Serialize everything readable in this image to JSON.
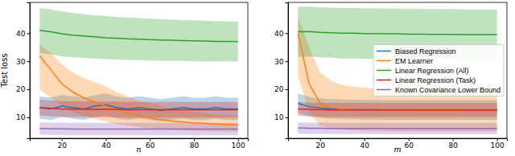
{
  "chart_data": [
    {
      "type": "line",
      "x_label": "n",
      "y_label": "Test loss",
      "x": [
        10,
        15,
        20,
        25,
        30,
        35,
        40,
        45,
        50,
        55,
        60,
        65,
        70,
        75,
        80,
        85,
        90,
        95,
        100
      ],
      "xlim": [
        5.5,
        104.5
      ],
      "xticks": [
        20,
        40,
        60,
        80,
        100
      ],
      "ylim": [
        2.5,
        51
      ],
      "yticks": [
        10,
        20,
        30,
        40
      ],
      "series": [
        {
          "color": "#1f77b4",
          "values": [
            13.5,
            13,
            14,
            13.5,
            13,
            14,
            14.5,
            13.5,
            13,
            13.5,
            13,
            12.5,
            13,
            13.5,
            13,
            13,
            13.5,
            13,
            13
          ],
          "upper": [
            17.5,
            17,
            18,
            17.5,
            17,
            18,
            18.5,
            17.5,
            17,
            17.5,
            17,
            16.5,
            17,
            17.5,
            17,
            17,
            17.5,
            17,
            17
          ],
          "lower": [
            9.5,
            9,
            10,
            9.5,
            9,
            10,
            10.5,
            9.5,
            9,
            9.5,
            9,
            8.5,
            9,
            9.5,
            9,
            9,
            9.5,
            9,
            9
          ]
        },
        {
          "color": "#ff7f0e",
          "values": [
            32,
            27,
            22,
            19,
            17,
            15.5,
            14,
            12.5,
            11.5,
            10.5,
            9.8,
            9.2,
            8.7,
            8.3,
            8,
            7.8,
            7.6,
            7.4,
            7.2
          ],
          "upper": [
            36,
            33,
            29,
            26,
            24,
            22.5,
            21,
            19,
            17.5,
            16,
            15,
            14,
            13,
            12.5,
            12,
            11.5,
            11,
            10.8,
            10.5
          ],
          "lower": [
            20,
            17,
            14,
            12,
            10.5,
            9.5,
            8.5,
            7.5,
            7,
            6.5,
            6,
            5.8,
            5.5,
            5.3,
            5.2,
            5.1,
            5,
            4.9,
            4.8
          ]
        },
        {
          "color": "#2ca02c",
          "values": [
            41,
            40.5,
            39.8,
            39.3,
            39,
            38.7,
            38.4,
            38.2,
            38,
            37.9,
            37.7,
            37.6,
            37.5,
            37.4,
            37.3,
            37.2,
            37.1,
            37.1,
            37
          ],
          "upper": [
            49,
            48.5,
            47.8,
            47.2,
            46.8,
            46.4,
            46.1,
            45.8,
            45.6,
            45.4,
            45.2,
            45,
            44.9,
            44.7,
            44.6,
            44.5,
            44.3,
            44.2,
            44.1
          ],
          "lower": [
            33,
            32.5,
            31.8,
            31.4,
            31.2,
            31,
            30.7,
            30.6,
            30.4,
            30.4,
            30.2,
            30.2,
            30.1,
            30.1,
            30,
            29.9,
            29.9,
            30,
            29.9
          ]
        },
        {
          "color": "#d62728",
          "values": [
            13.5,
            13.2,
            13,
            12.9,
            12.9,
            12.8,
            12.8,
            12.8,
            12.7,
            12.7,
            12.7,
            12.7,
            12.7,
            12.7,
            12.7,
            12.7,
            12.7,
            12.7,
            12.7
          ],
          "upper": [
            16.3,
            16,
            15.8,
            15.7,
            15.7,
            15.6,
            15.6,
            15.6,
            15.5,
            15.5,
            15.5,
            15.5,
            15.5,
            15.5,
            15.5,
            15.5,
            15.5,
            15.5,
            15.5
          ],
          "lower": [
            10.7,
            10.4,
            10.2,
            10.1,
            10.1,
            10,
            10,
            10,
            9.9,
            9.9,
            9.9,
            9.9,
            9.9,
            9.9,
            9.9,
            9.9,
            9.9,
            9.9,
            9.9
          ]
        },
        {
          "color": "#9467bd",
          "values": [
            6,
            5.9,
            5.9,
            5.8,
            5.8,
            5.8,
            5.8,
            5.8,
            5.8,
            5.8,
            5.8,
            5.8,
            5.8,
            5.8,
            5.8,
            5.8,
            5.8,
            5.8,
            5.8
          ],
          "upper": [
            8.2,
            8.1,
            8.1,
            8,
            8,
            8,
            8,
            8,
            8,
            8,
            8,
            8,
            8,
            8,
            8,
            8,
            8,
            8,
            8
          ],
          "lower": [
            3.8,
            3.7,
            3.7,
            3.6,
            3.6,
            3.6,
            3.6,
            3.6,
            3.6,
            3.6,
            3.6,
            3.6,
            3.6,
            3.6,
            3.6,
            3.6,
            3.6,
            3.6,
            3.6
          ]
        }
      ]
    },
    {
      "type": "line",
      "x_label": "m",
      "legend": "center right",
      "x": [
        10,
        15,
        20,
        25,
        30,
        35,
        40,
        45,
        50,
        55,
        60,
        65,
        70,
        75,
        80,
        85,
        90,
        95,
        100
      ],
      "xlim": [
        5.5,
        104.5
      ],
      "xticks": [
        20,
        40,
        60,
        80,
        100
      ],
      "ylim": [
        2.5,
        51
      ],
      "yticks": [
        10,
        20,
        30,
        40
      ],
      "series": [
        {
          "name": "Biased Regression",
          "color": "#1f77b4",
          "values": [
            15,
            13.8,
            13.3,
            13,
            12.9,
            12.8,
            12.7,
            12.7,
            12.6,
            12.6,
            12.6,
            12.6,
            12.6,
            12.6,
            12.6,
            12.6,
            12.6,
            12.6,
            12.6
          ],
          "upper": [
            18.5,
            17.3,
            16.8,
            16.5,
            16.4,
            16.3,
            16.2,
            16.2,
            16.1,
            16.1,
            16.1,
            16.1,
            16.1,
            16.1,
            16.1,
            16.1,
            16.1,
            16.1,
            16.1
          ],
          "lower": [
            11.5,
            10.3,
            9.8,
            9.5,
            9.4,
            9.3,
            9.2,
            9.2,
            9.1,
            9.1,
            9.1,
            9.1,
            9.1,
            9.1,
            9.1,
            9.1,
            9.1,
            9.1,
            9.1
          ]
        },
        {
          "name": "EM Learner",
          "color": "#ff7f0e",
          "values": [
            40,
            22,
            15,
            13.5,
            13,
            12.8,
            12.6,
            12.5,
            12.5,
            12.4,
            12.4,
            12.3,
            12.3,
            12.3,
            12.3,
            12.2,
            12.2,
            12.2,
            12.2
          ],
          "upper": [
            46,
            35,
            26,
            23,
            21.5,
            21,
            20.5,
            20.3,
            20.2,
            20,
            20,
            20,
            20,
            20,
            20,
            20,
            20,
            20,
            20
          ],
          "lower": [
            25,
            12,
            7,
            6,
            5.5,
            5.3,
            5.2,
            5.1,
            5,
            5,
            5,
            5,
            5,
            5,
            5,
            5,
            5,
            5,
            5
          ]
        },
        {
          "name": "Linear Regression (All)",
          "color": "#2ca02c",
          "values": [
            40.5,
            40.6,
            40.3,
            40.2,
            40,
            40,
            39.9,
            39.9,
            39.8,
            39.8,
            39.7,
            39.7,
            39.6,
            39.6,
            39.6,
            39.5,
            39.5,
            39.5,
            39.5
          ],
          "upper": [
            49.5,
            49.5,
            49.2,
            49.1,
            49,
            49,
            48.9,
            48.9,
            48.8,
            48.8,
            48.7,
            48.7,
            48.6,
            48.6,
            48.6,
            48.5,
            48.5,
            48.5,
            48.5
          ],
          "lower": [
            31.5,
            31.7,
            31.4,
            31.3,
            31,
            31,
            30.9,
            30.9,
            30.8,
            30.8,
            30.7,
            30.7,
            30.6,
            30.6,
            30.6,
            30.5,
            30.5,
            30.5,
            30.5
          ]
        },
        {
          "name": "Linear Regression (Task)",
          "color": "#d62728",
          "values": [
            13,
            12.8,
            12.7,
            12.6,
            12.6,
            12.6,
            12.6,
            12.6,
            12.6,
            12.6,
            12.6,
            12.6,
            12.6,
            12.6,
            12.6,
            12.6,
            12.6,
            12.6,
            12.6
          ],
          "upper": [
            15.5,
            15.3,
            15.2,
            15.1,
            15.1,
            15.1,
            15.1,
            15.1,
            15.1,
            15.1,
            15.1,
            15.1,
            15.1,
            15.1,
            15.1,
            15.1,
            15.1,
            15.1,
            15.1
          ],
          "lower": [
            10.5,
            10.3,
            10.2,
            10.1,
            10.1,
            10.1,
            10.1,
            10.1,
            10.1,
            10.1,
            10.1,
            10.1,
            10.1,
            10.1,
            10.1,
            10.1,
            10.1,
            10.1,
            10.1
          ]
        },
        {
          "name": "Known Covariance Lower Bound",
          "color": "#9467bd",
          "values": [
            6.2,
            6.1,
            6.1,
            6,
            6,
            6,
            6,
            6,
            6,
            6,
            6,
            6,
            6,
            6,
            6,
            6,
            6,
            6,
            6
          ],
          "upper": [
            8.2,
            8.1,
            8.1,
            8,
            8,
            8,
            8,
            8,
            8,
            8,
            8,
            8,
            8,
            8,
            8,
            8,
            8,
            8,
            8
          ],
          "lower": [
            4.2,
            4.1,
            4.1,
            4,
            4,
            4,
            4,
            4,
            4,
            4,
            4,
            4,
            4,
            4,
            4,
            4,
            4,
            4,
            4
          ]
        }
      ]
    }
  ]
}
